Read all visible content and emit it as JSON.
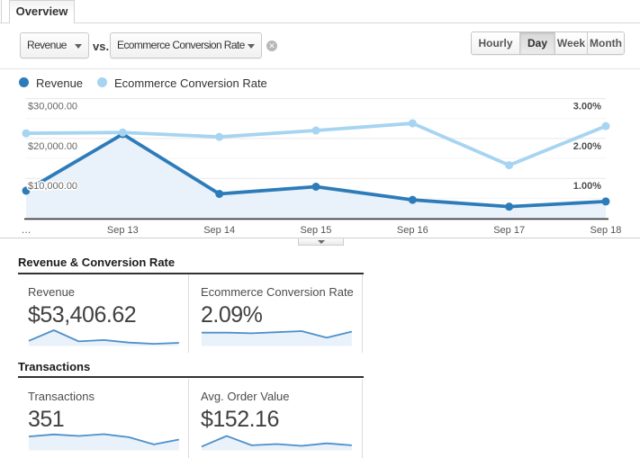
{
  "tab": {
    "label": "Overview"
  },
  "controls": {
    "primary_metric": "Revenue",
    "vs_label": "vs.",
    "secondary_metric": "Ecommerce Conversion Rate",
    "clear_icon": "x-circle-icon",
    "granularity": [
      {
        "label": "Hourly",
        "active": false
      },
      {
        "label": "Day",
        "active": true
      },
      {
        "label": "Week",
        "active": false
      },
      {
        "label": "Month",
        "active": false
      }
    ]
  },
  "legend": [
    {
      "label": "Revenue",
      "color": "#2d7cb9"
    },
    {
      "label": "Ecommerce Conversion Rate",
      "color": "#a6d4f1"
    }
  ],
  "colors": {
    "primary_line": "#2d7cb9",
    "secondary_line": "#a6d4f1",
    "area_fill": "#e9f1fa",
    "spark_line": "#4d90ca",
    "spark_fill": "#e9f1fa",
    "grid_major": "#e7e7e7",
    "grid_minor": "#f4f4f4",
    "axis_line": "#3e3e3e"
  },
  "chart_data": [
    {
      "id": "timeseries",
      "type": "line",
      "title": "Revenue vs Ecommerce Conversion Rate by day",
      "x": [
        "…",
        "Sep 13",
        "Sep 14",
        "Sep 15",
        "Sep 16",
        "Sep 17",
        "Sep 18"
      ],
      "series": [
        {
          "name": "Revenue",
          "axis": "left",
          "color": "#2d7cb9",
          "fill": "#e9f1fa",
          "values": [
            6900,
            21100,
            6100,
            7900,
            4600,
            2900,
            4200
          ]
        },
        {
          "name": "Ecommerce Conversion Rate",
          "axis": "right",
          "color": "#a6d4f1",
          "values": [
            2.13,
            2.15,
            2.04,
            2.2,
            2.38,
            1.33,
            2.31
          ]
        }
      ],
      "y_left": {
        "ticks": [
          10000,
          20000,
          30000
        ],
        "labels": [
          "$10,000.00",
          "$20,000.00",
          "$30,000.00"
        ],
        "range": [
          0,
          33000
        ]
      },
      "y_right": {
        "ticks": [
          1,
          2,
          3
        ],
        "labels": [
          "1.00%",
          "2.00%",
          "3.00%"
        ],
        "range": [
          0,
          3.3
        ]
      },
      "grid": true,
      "legend_position": "top-left"
    },
    {
      "id": "spark-revenue",
      "type": "area",
      "values": [
        6900,
        21100,
        6100,
        7900,
        4600,
        2900,
        4200
      ]
    },
    {
      "id": "spark-conversion",
      "type": "area",
      "values": [
        2.13,
        2.15,
        2.04,
        2.2,
        2.38,
        1.33,
        2.31
      ]
    },
    {
      "id": "spark-transactions",
      "type": "area",
      "values": [
        54,
        62,
        56,
        63,
        51,
        23,
        42
      ]
    },
    {
      "id": "spark-aov",
      "type": "area",
      "values": [
        90,
        340,
        119,
        149,
        106,
        166,
        119
      ]
    }
  ],
  "sections": [
    {
      "title": "Revenue & Conversion Rate",
      "cards": [
        {
          "label": "Revenue",
          "value": "$53,406.62",
          "spark_id": "spark-revenue"
        },
        {
          "label": "Ecommerce Conversion Rate",
          "value": "2.09%",
          "spark_id": "spark-conversion"
        }
      ]
    },
    {
      "title": "Transactions",
      "cards": [
        {
          "label": "Transactions",
          "value": "351",
          "spark_id": "spark-transactions"
        },
        {
          "label": "Avg. Order Value",
          "value": "$152.16",
          "spark_id": "spark-aov"
        }
      ]
    }
  ]
}
